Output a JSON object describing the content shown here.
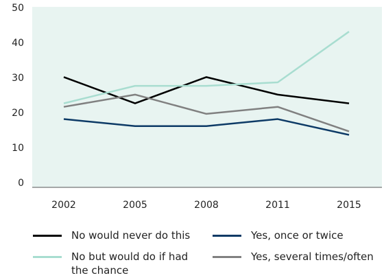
{
  "chart_data": {
    "type": "line",
    "categories": [
      "2002",
      "2005",
      "2008",
      "2011",
      "2015"
    ],
    "ylim": [
      0,
      50
    ],
    "yticks": [
      "0",
      "10",
      "20",
      "30",
      "40",
      "50"
    ],
    "plot_background": "#e8f4f1",
    "series": [
      {
        "name": "No would never do this",
        "color": "#000000",
        "values": [
          31.5,
          24,
          31.5,
          26.5,
          24
        ]
      },
      {
        "name": "Yes, once or twice",
        "color": "#0d3a66",
        "values": [
          19.5,
          17.5,
          17.5,
          19.5,
          15
        ]
      },
      {
        "name": "No but would do if had the chance",
        "color": "#a8ddd0",
        "values": [
          24,
          29,
          29,
          30,
          44.5
        ]
      },
      {
        "name": "Yes, several times/often",
        "color": "#808080",
        "values": [
          23,
          26.5,
          21,
          23,
          16
        ]
      }
    ]
  }
}
